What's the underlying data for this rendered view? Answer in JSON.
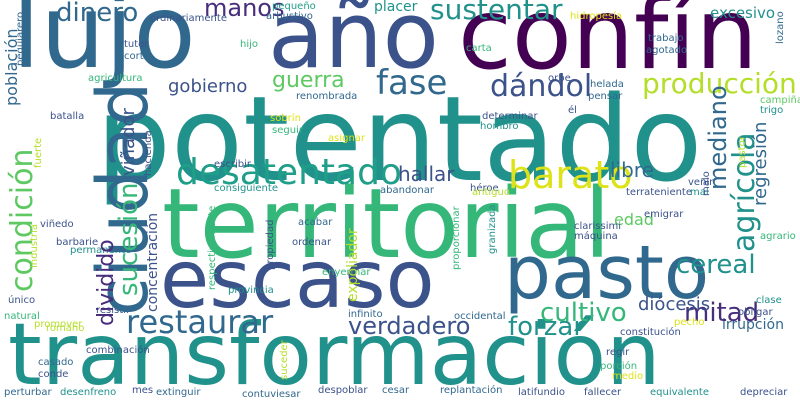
{
  "words": [
    {
      "text": "lujo",
      "color": "#31688e"
    },
    {
      "text": "año",
      "color": "#3b528b"
    },
    {
      "text": "confín",
      "color": "#440154"
    },
    {
      "text": "potentado",
      "color": "#21918c"
    },
    {
      "text": "territorial",
      "color": "#35b779"
    },
    {
      "text": "transformación",
      "color": "#21918c"
    },
    {
      "text": "escaso",
      "color": "#3b528b"
    },
    {
      "text": "pasto",
      "color": "#31688e"
    },
    {
      "text": "ciudad",
      "color": "#31688e"
    },
    {
      "text": "desatentado",
      "color": "#1f9e89"
    },
    {
      "text": "barato",
      "color": "#dde318"
    },
    {
      "text": "restaurar",
      "color": "#31688e"
    },
    {
      "text": "verdadero",
      "color": "#3b528b"
    },
    {
      "text": "forzar",
      "color": "#21918c"
    },
    {
      "text": "condición",
      "color": "#5ec962"
    },
    {
      "text": "sucesión",
      "color": "#35b779"
    },
    {
      "text": "producción",
      "color": "#b5de2b"
    },
    {
      "text": "agrícola",
      "color": "#21918c"
    },
    {
      "text": "sustentar",
      "color": "#21918c"
    },
    {
      "text": "fase",
      "color": "#31688e"
    },
    {
      "text": "dándol",
      "color": "#3b528b"
    },
    {
      "text": "guerra",
      "color": "#5ec962"
    },
    {
      "text": "dinero",
      "color": "#31688e"
    },
    {
      "text": "manos",
      "color": "#472d7b"
    },
    {
      "text": "mediano",
      "color": "#31688e"
    },
    {
      "text": "cultivo",
      "color": "#35b779"
    },
    {
      "text": "mitad",
      "color": "#472d7b"
    },
    {
      "text": "cereal",
      "color": "#21918c"
    },
    {
      "text": "dividido",
      "color": "#472d7b"
    },
    {
      "text": "hallar",
      "color": "#3b528b"
    },
    {
      "text": "libre",
      "color": "#31688e"
    },
    {
      "text": "gobierno",
      "color": "#3b528b"
    },
    {
      "text": "diócesis",
      "color": "#3b528b"
    },
    {
      "text": "irrupción",
      "color": "#31688e"
    },
    {
      "text": "edad",
      "color": "#5ec962"
    },
    {
      "text": "regresión",
      "color": "#31688e"
    },
    {
      "text": "viñador",
      "color": "#3b528b"
    },
    {
      "text": "población",
      "color": "#31688e"
    },
    {
      "text": "concentración",
      "color": "#3b528b"
    },
    {
      "text": "expoliador",
      "color": "#b5de2b"
    },
    {
      "text": "excesivo",
      "color": "#21918c"
    },
    {
      "text": "placer",
      "color": "#21918c"
    },
    {
      "text": "lozano",
      "color": "#31688e"
    },
    {
      "text": "ordinariamente",
      "color": "#3b528b"
    },
    {
      "text": "pequeño",
      "color": "#1f9e89"
    },
    {
      "text": "arbustivo",
      "color": "#31688e"
    },
    {
      "text": "hidropesía",
      "color": "#dde318"
    },
    {
      "text": "trabajo",
      "color": "#31688e"
    },
    {
      "text": "agotado",
      "color": "#31688e"
    },
    {
      "text": "carta",
      "color": "#35b779"
    },
    {
      "text": "hijo",
      "color": "#35b779"
    },
    {
      "text": "tutor",
      "color": "#3b528b"
    },
    {
      "text": "corta",
      "color": "#31688e"
    },
    {
      "text": "agricultura",
      "color": "#35b779"
    },
    {
      "text": "pegujarero",
      "color": "#31688e"
    },
    {
      "text": "orbe",
      "color": "#3b528b"
    },
    {
      "text": "helada",
      "color": "#31688e"
    },
    {
      "text": "pensar",
      "color": "#31688e"
    },
    {
      "text": "campiña",
      "color": "#5ec962"
    },
    {
      "text": "trigo",
      "color": "#21918c"
    },
    {
      "text": "renombrada",
      "color": "#31688e"
    },
    {
      "text": "batalla",
      "color": "#3b528b"
    },
    {
      "text": "sobrín",
      "color": "#dde318"
    },
    {
      "text": "seguir",
      "color": "#35b779"
    },
    {
      "text": "hombro",
      "color": "#21918c"
    },
    {
      "text": "determinar",
      "color": "#3b528b"
    },
    {
      "text": "él",
      "color": "#3b528b"
    },
    {
      "text": "fuerte",
      "color": "#b5de2b"
    },
    {
      "text": "hacienda",
      "color": "#3b528b"
    },
    {
      "text": "asignar",
      "color": "#dde318"
    },
    {
      "text": "pastor",
      "color": "#b5de2b"
    },
    {
      "text": "escribir",
      "color": "#3b528b"
    },
    {
      "text": "consiguiente",
      "color": "#21918c"
    },
    {
      "text": "abandonar",
      "color": "#31688e"
    },
    {
      "text": "héroe",
      "color": "#3b528b"
    },
    {
      "text": "antiguo",
      "color": "#b5de2b"
    },
    {
      "text": "usurario",
      "color": "#b5de2b"
    },
    {
      "text": "terrateniente",
      "color": "#3b528b"
    },
    {
      "text": "venir",
      "color": "#3b528b"
    },
    {
      "text": "mal",
      "color": "#21918c"
    },
    {
      "text": "malo",
      "color": "#3b528b"
    },
    {
      "text": "viñedo",
      "color": "#3b528b"
    },
    {
      "text": "industria",
      "color": "#b5de2b"
    },
    {
      "text": "respectivamente",
      "color": "#35b779"
    },
    {
      "text": "proporcionar",
      "color": "#35b779"
    },
    {
      "text": "emigrar",
      "color": "#3b528b"
    },
    {
      "text": "agrario",
      "color": "#35b779"
    },
    {
      "text": "barbarie",
      "color": "#3b528b"
    },
    {
      "text": "acabar",
      "color": "#31688e"
    },
    {
      "text": "ordenar",
      "color": "#3b528b"
    },
    {
      "text": "propiedad",
      "color": "#3b528b"
    },
    {
      "text": "granizada",
      "color": "#21918c"
    },
    {
      "text": "clarissimi",
      "color": "#3b528b"
    },
    {
      "text": "máquina",
      "color": "#3b528b"
    },
    {
      "text": "permanente",
      "color": "#21918c"
    },
    {
      "text": "enyermar",
      "color": "#35b779"
    },
    {
      "text": "provincia",
      "color": "#21918c"
    },
    {
      "text": "único",
      "color": "#3b528b"
    },
    {
      "text": "natural",
      "color": "#35b779"
    },
    {
      "text": "promover",
      "color": "#b5de2b"
    },
    {
      "text": "romano",
      "color": "#b5de2b"
    },
    {
      "text": "resistir",
      "color": "#3b528b"
    },
    {
      "text": "infinito",
      "color": "#31688e"
    },
    {
      "text": "occidental",
      "color": "#31688e"
    },
    {
      "text": "clase",
      "color": "#21918c"
    },
    {
      "text": "obligar",
      "color": "#3b528b"
    },
    {
      "text": "pecho",
      "color": "#dde318"
    },
    {
      "text": "constitución",
      "color": "#3b528b"
    },
    {
      "text": "casado",
      "color": "#31688e"
    },
    {
      "text": "combinación",
      "color": "#3b528b"
    },
    {
      "text": "suceder",
      "color": "#b5de2b"
    },
    {
      "text": "regir",
      "color": "#3b528b"
    },
    {
      "text": "conde",
      "color": "#3b528b"
    },
    {
      "text": "porción",
      "color": "#35b779"
    },
    {
      "text": "medio",
      "color": "#dde318"
    },
    {
      "text": "perturbar",
      "color": "#31688e"
    },
    {
      "text": "desenfreno",
      "color": "#21918c"
    },
    {
      "text": "mes",
      "color": "#3b528b"
    },
    {
      "text": "extinguir",
      "color": "#31688e"
    },
    {
      "text": "contuviesar",
      "color": "#31688e"
    },
    {
      "text": "despoblar",
      "color": "#3b528b"
    },
    {
      "text": "cesar",
      "color": "#31688e"
    },
    {
      "text": "replantación",
      "color": "#31688e"
    },
    {
      "text": "latifundio",
      "color": "#3b528b"
    },
    {
      "text": "fallecer",
      "color": "#3b528b"
    },
    {
      "text": "equivalente",
      "color": "#21918c"
    },
    {
      "text": "depreciar",
      "color": "#3b528b"
    }
  ]
}
